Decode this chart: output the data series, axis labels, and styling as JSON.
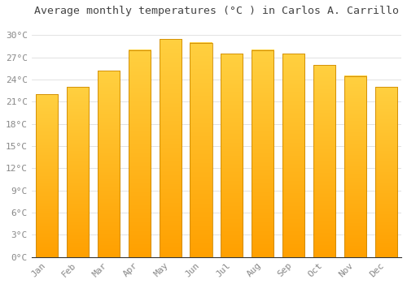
{
  "title": "Average monthly temperatures (°C ) in Carlos A. Carrillo",
  "months": [
    "Jan",
    "Feb",
    "Mar",
    "Apr",
    "May",
    "Jun",
    "Jul",
    "Aug",
    "Sep",
    "Oct",
    "Nov",
    "Dec"
  ],
  "values": [
    22.0,
    23.0,
    25.2,
    28.0,
    29.5,
    29.0,
    27.5,
    28.0,
    27.5,
    26.0,
    24.5,
    23.0
  ],
  "bar_color": "#FFA500",
  "bar_gradient_top": "#FFD040",
  "bar_gradient_bottom": "#FFA000",
  "bar_edge_color": "#CC8800",
  "background_color": "#FFFFFF",
  "grid_color": "#DDDDDD",
  "title_fontsize": 9.5,
  "tick_fontsize": 8,
  "ylim": [
    0,
    32
  ],
  "yticks": [
    0,
    3,
    6,
    9,
    12,
    15,
    18,
    21,
    24,
    27,
    30
  ],
  "ytick_labels": [
    "0°C",
    "3°C",
    "6°C",
    "9°C",
    "12°C",
    "15°C",
    "18°C",
    "21°C",
    "24°C",
    "27°C",
    "30°C"
  ],
  "label_color": "#888888",
  "spine_color": "#333333",
  "bar_width": 0.72
}
